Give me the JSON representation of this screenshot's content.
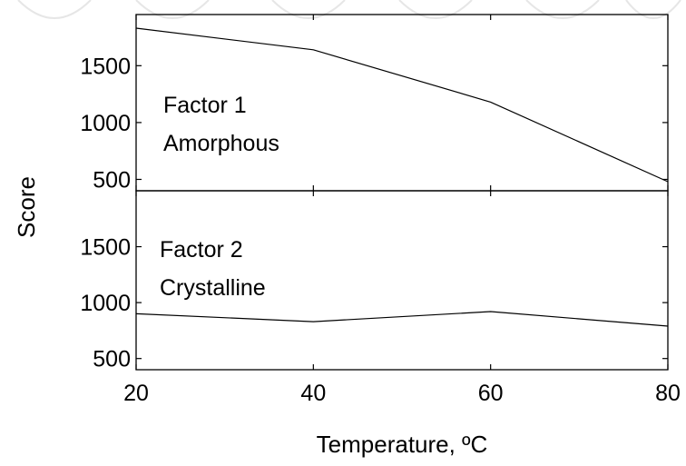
{
  "chart_data": {
    "type": "line",
    "xlabel": "Temperature, ºC",
    "ylabel": "Score",
    "xlim": [
      20,
      80
    ],
    "x_ticks": [
      "20",
      "40",
      "60",
      "80"
    ],
    "grid": false,
    "panels": [
      {
        "annotation": [
          "Factor 1",
          "Amorphous"
        ],
        "ylim": [
          400,
          1950
        ],
        "y_ticks": [
          "500",
          "1000",
          "1500"
        ],
        "series": [
          {
            "x": [
              20,
              40,
              60,
              80
            ],
            "values": [
              1830,
              1640,
              1180,
              480
            ]
          }
        ]
      },
      {
        "annotation": [
          "Factor 2",
          "Crystalline"
        ],
        "ylim": [
          400,
          2000
        ],
        "y_ticks": [
          "500",
          "1000",
          "1500"
        ],
        "series": [
          {
            "x": [
              20,
              40,
              60,
              80
            ],
            "values": [
              900,
              830,
              920,
              790
            ]
          }
        ]
      }
    ]
  }
}
